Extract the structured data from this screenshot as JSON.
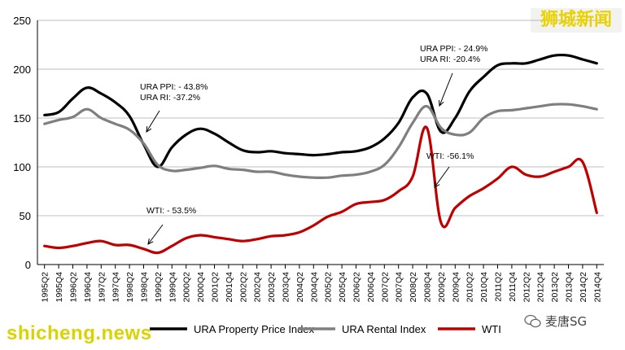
{
  "watermarks": {
    "top_right": "狮城新闻",
    "bottom_left": "shicheng.news",
    "bottom_right": "麦唐SG",
    "bottom_right_icon": "wechat-icon"
  },
  "colors": {
    "ppi": "#000000",
    "rental": "#7f7f7f",
    "wti": "#c00000",
    "grid": "#bfbfbf"
  },
  "chart_data": {
    "type": "line",
    "title": "",
    "xlabel": "",
    "ylabel": "",
    "ylim": [
      0,
      250
    ],
    "yticks": [
      0,
      50,
      100,
      150,
      200,
      250
    ],
    "grid": true,
    "legend_position": "bottom",
    "categories": [
      "1995Q2",
      "1995Q4",
      "1996Q2",
      "1996Q4",
      "1997Q2",
      "1997Q4",
      "1998Q2",
      "1998Q4",
      "1999Q2",
      "1999Q4",
      "2000Q2",
      "2000Q4",
      "2001Q2",
      "2001Q4",
      "2002Q2",
      "2002Q4",
      "2003Q2",
      "2003Q4",
      "2004Q2",
      "2004Q4",
      "2005Q2",
      "2005Q4",
      "2006Q2",
      "2006Q4",
      "2007Q2",
      "2007Q4",
      "2008Q2",
      "2008Q4",
      "2009Q2",
      "2009Q4",
      "2010Q2",
      "2010Q4",
      "2011Q2",
      "2011Q4",
      "2012Q2",
      "2012Q4",
      "2013Q2",
      "2013Q4",
      "2014Q2",
      "2014Q4"
    ],
    "series": [
      {
        "name": "URA Property Price Index",
        "values": [
          153,
          156,
          170,
          181,
          175,
          166,
          152,
          123,
          100,
          120,
          133,
          139,
          134,
          125,
          117,
          115,
          116,
          114,
          113,
          112,
          113,
          115,
          116,
          120,
          129,
          145,
          171,
          175,
          136,
          150,
          177,
          192,
          204,
          206,
          206,
          210,
          214,
          214,
          210,
          206
        ]
      },
      {
        "name": "URA Rental Index",
        "values": [
          144,
          148,
          151,
          159,
          150,
          144,
          138,
          124,
          102,
          96,
          97,
          99,
          101,
          98,
          97,
          95,
          95,
          92,
          90,
          89,
          89,
          91,
          92,
          95,
          102,
          120,
          145,
          162,
          140,
          133,
          135,
          150,
          157,
          158,
          160,
          162,
          164,
          164,
          162,
          159
        ]
      },
      {
        "name": "WTI",
        "values": [
          19,
          17,
          19,
          22,
          24,
          20,
          20,
          16,
          12,
          19,
          27,
          30,
          28,
          26,
          24,
          26,
          29,
          30,
          33,
          40,
          49,
          54,
          62,
          64,
          66,
          75,
          90,
          140,
          43,
          58,
          70,
          78,
          88,
          100,
          92,
          90,
          95,
          100,
          105,
          53
        ]
      }
    ],
    "annotations": [
      {
        "lines": [
          "URA PPI: - 43.8%",
          "URA RI: -37.2%"
        ],
        "target": "1998Q4"
      },
      {
        "lines": [
          "URA PPI: - 24.9%",
          "URA RI: -20.4%"
        ],
        "target": "2009Q2"
      },
      {
        "lines": [
          "WTI: - 53.5%"
        ],
        "target": "1998Q4"
      },
      {
        "lines": [
          "WTI: -56.1%"
        ],
        "target": "2009Q2"
      }
    ]
  }
}
